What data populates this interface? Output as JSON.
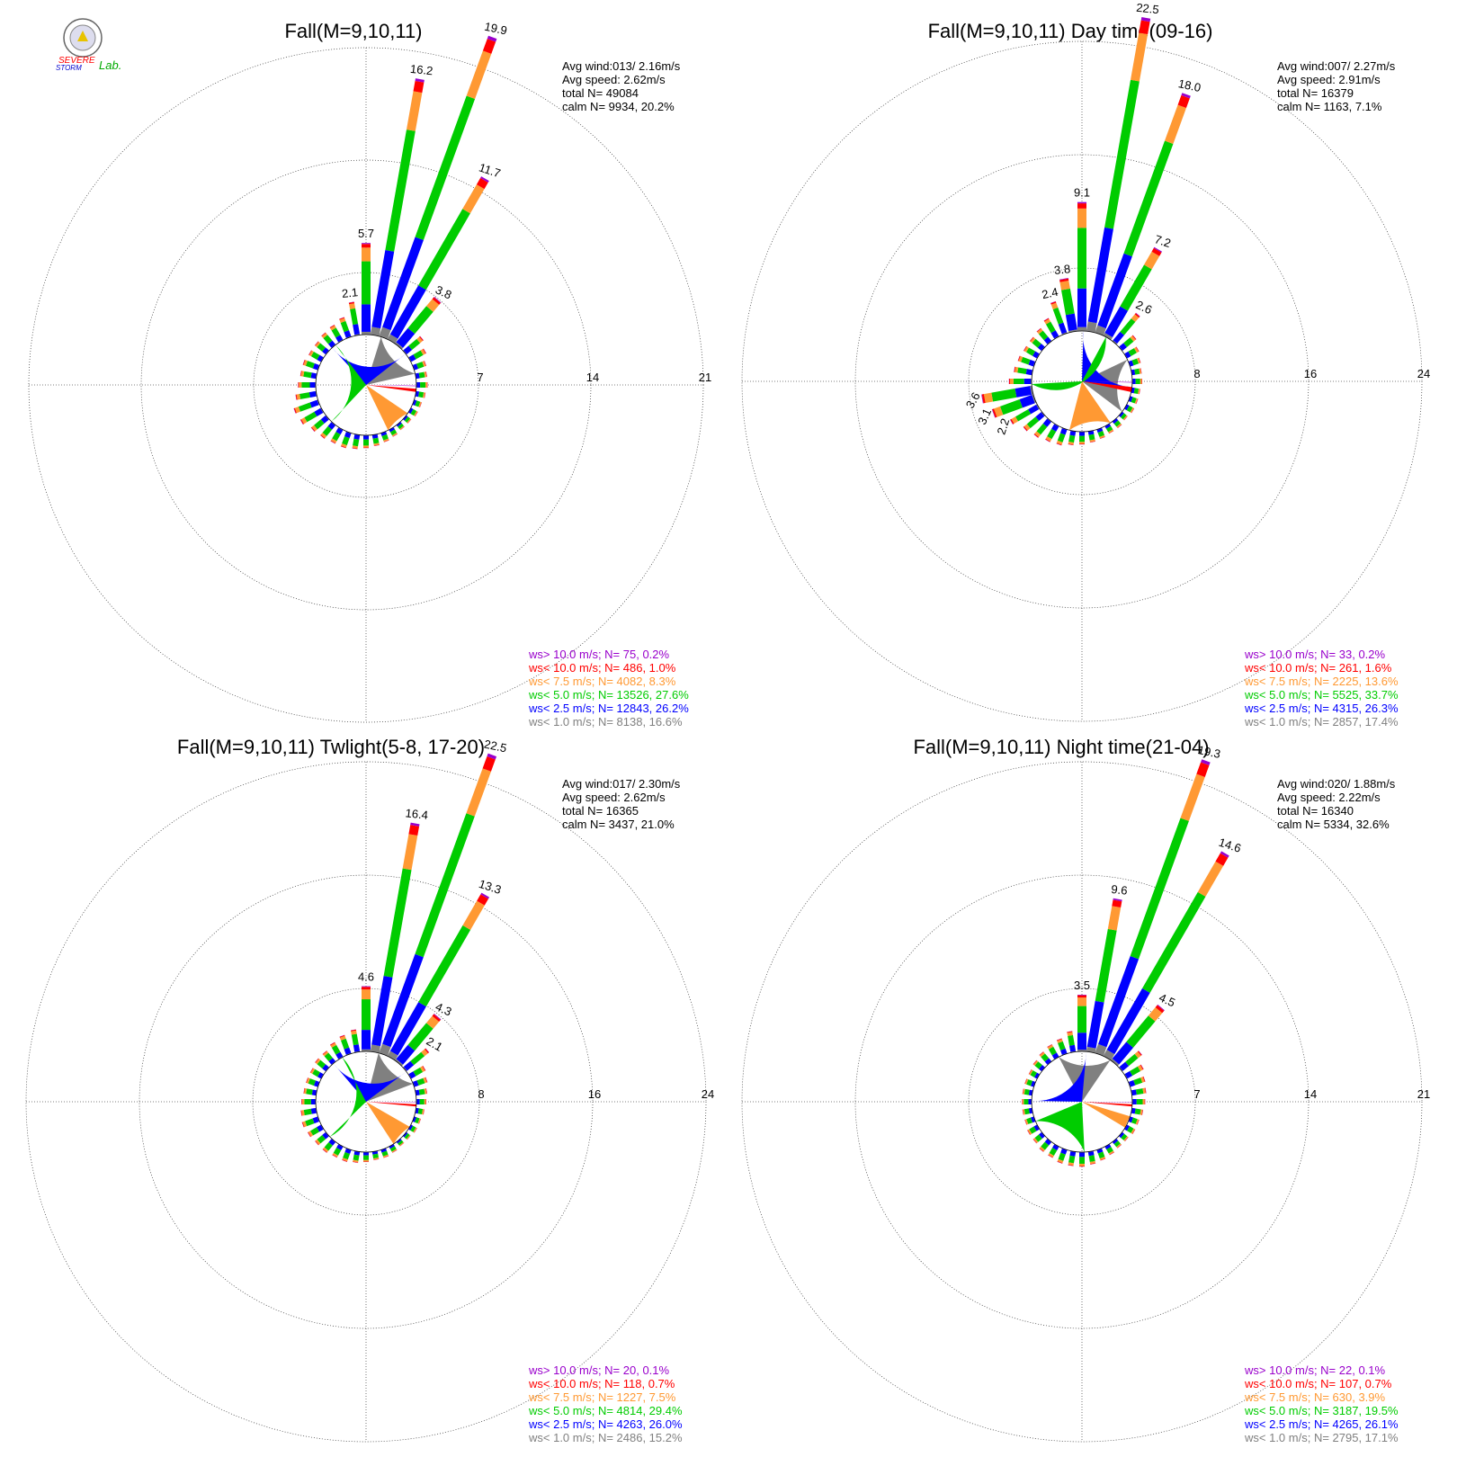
{
  "logo": {
    "text_1": "SEVERE",
    "text_2": "STORM",
    "text_3": "Lab."
  },
  "legend_colors": {
    "gt10": "#9900cc",
    "lt10": "#ff0000",
    "lt7_5": "#ff9933",
    "lt5": "#00cc00",
    "lt2_5": "#0000ff",
    "lt1": "#808080"
  },
  "chart_data": [
    {
      "type": "windrose",
      "title": "Fall(M=9,10,11)",
      "ring_ticks": [
        "7",
        "14",
        "21"
      ],
      "rmax": 21,
      "stats": [
        "Avg wind:013/ 2.16m/s",
        "Avg speed: 2.62m/s",
        "total N=      49084",
        "calm N=   9934,  20.2%"
      ],
      "legend": [
        {
          "label": "ws> 10.0 m/s; N=    75,  0.2%",
          "color": "#9900cc"
        },
        {
          "label": "ws< 10.0 m/s; N=   486,  1.0%",
          "color": "#ff0000"
        },
        {
          "label": "ws<  7.5 m/s; N=  4082,  8.3%",
          "color": "#ff9933"
        },
        {
          "label": "ws<  5.0 m/s; N= 13526, 27.6%",
          "color": "#00cc00"
        },
        {
          "label": "ws<  2.5 m/s; N= 12843, 26.2%",
          "color": "#0000ff"
        },
        {
          "label": "ws<  1.0 m/s; N=  8138, 16.6%",
          "color": "#808080"
        }
      ],
      "calm_pie": [
        20.2,
        16.6,
        26.2,
        27.6,
        8.3,
        1.0,
        0.2
      ],
      "spokes": [
        {
          "dir": 350,
          "total": 2.1,
          "label": "2.1"
        },
        {
          "dir": 0,
          "total": 5.7,
          "label": "5.7"
        },
        {
          "dir": 10,
          "total": 16.2,
          "label": "16.2"
        },
        {
          "dir": 20,
          "total": 19.9,
          "label": "19.9"
        },
        {
          "dir": 30,
          "total": 11.7,
          "label": "11.7"
        },
        {
          "dir": 40,
          "total": 3.8,
          "label": "3.8"
        },
        {
          "dir": 50,
          "total": 1.4
        },
        {
          "dir": 60,
          "total": 1.1
        },
        {
          "dir": 70,
          "total": 0.8
        },
        {
          "dir": 80,
          "total": 0.7
        },
        {
          "dir": 90,
          "total": 0.7
        },
        {
          "dir": 100,
          "total": 0.6
        },
        {
          "dir": 110,
          "total": 0.5
        },
        {
          "dir": 120,
          "total": 0.5
        },
        {
          "dir": 130,
          "total": 0.4
        },
        {
          "dir": 140,
          "total": 0.4
        },
        {
          "dir": 150,
          "total": 0.5
        },
        {
          "dir": 160,
          "total": 0.6
        },
        {
          "dir": 170,
          "total": 0.7
        },
        {
          "dir": 180,
          "total": 0.8
        },
        {
          "dir": 190,
          "total": 0.9
        },
        {
          "dir": 200,
          "total": 1.0
        },
        {
          "dir": 210,
          "total": 1.0
        },
        {
          "dir": 220,
          "total": 1.1
        },
        {
          "dir": 230,
          "total": 1.2
        },
        {
          "dir": 240,
          "total": 1.5
        },
        {
          "dir": 250,
          "total": 1.6
        },
        {
          "dir": 260,
          "total": 1.3
        },
        {
          "dir": 270,
          "total": 1.1
        },
        {
          "dir": 280,
          "total": 1.0
        },
        {
          "dir": 290,
          "total": 1.0
        },
        {
          "dir": 300,
          "total": 0.9
        },
        {
          "dir": 310,
          "total": 0.9
        },
        {
          "dir": 320,
          "total": 1.0
        },
        {
          "dir": 330,
          "total": 1.1
        },
        {
          "dir": 340,
          "total": 1.3
        }
      ]
    },
    {
      "type": "windrose",
      "title": "Fall(M=9,10,11) Day time(09-16)",
      "ring_ticks": [
        "8",
        "16",
        "24"
      ],
      "rmax": 24,
      "stats": [
        "Avg wind:007/ 2.27m/s",
        "Avg speed: 2.91m/s",
        "total N=      16379",
        "calm N=   1163,   7.1%"
      ],
      "legend": [
        {
          "label": "ws> 10.0 m/s; N=    33,  0.2%",
          "color": "#9900cc"
        },
        {
          "label": "ws< 10.0 m/s; N=   261,  1.6%",
          "color": "#ff0000"
        },
        {
          "label": "ws<  7.5 m/s; N=  2225, 13.6%",
          "color": "#ff9933"
        },
        {
          "label": "ws<  5.0 m/s; N=  5525, 33.7%",
          "color": "#00cc00"
        },
        {
          "label": "ws<  2.5 m/s; N=  4315, 26.3%",
          "color": "#0000ff"
        },
        {
          "label": "ws<  1.0 m/s; N=  2857, 17.4%",
          "color": "#808080"
        }
      ],
      "calm_pie": [
        7.1,
        17.4,
        26.3,
        33.7,
        13.6,
        1.6,
        0.2
      ],
      "spokes": [
        {
          "dir": 340,
          "total": 2.4,
          "label": "2.4"
        },
        {
          "dir": 350,
          "total": 3.8,
          "label": "3.8"
        },
        {
          "dir": 0,
          "total": 9.1,
          "label": "9.1"
        },
        {
          "dir": 10,
          "total": 22.5,
          "label": "22.5"
        },
        {
          "dir": 20,
          "total": 18.0,
          "label": "18.0"
        },
        {
          "dir": 30,
          "total": 7.2,
          "label": "7.2"
        },
        {
          "dir": 40,
          "total": 2.6,
          "label": "2.6"
        },
        {
          "dir": 50,
          "total": 1.3
        },
        {
          "dir": 60,
          "total": 1.0
        },
        {
          "dir": 70,
          "total": 0.8
        },
        {
          "dir": 80,
          "total": 0.7
        },
        {
          "dir": 90,
          "total": 0.7
        },
        {
          "dir": 100,
          "total": 0.6
        },
        {
          "dir": 110,
          "total": 0.6
        },
        {
          "dir": 120,
          "total": 0.6
        },
        {
          "dir": 130,
          "total": 0.5
        },
        {
          "dir": 140,
          "total": 0.6
        },
        {
          "dir": 150,
          "total": 0.6
        },
        {
          "dir": 160,
          "total": 0.7
        },
        {
          "dir": 170,
          "total": 0.8
        },
        {
          "dir": 180,
          "total": 0.9
        },
        {
          "dir": 190,
          "total": 1.0
        },
        {
          "dir": 200,
          "total": 1.2
        },
        {
          "dir": 210,
          "total": 1.3
        },
        {
          "dir": 220,
          "total": 1.5
        },
        {
          "dir": 230,
          "total": 1.7
        },
        {
          "dir": 240,
          "total": 2.2,
          "label": "2.2"
        },
        {
          "dir": 250,
          "total": 3.1,
          "label": "3.1"
        },
        {
          "dir": 260,
          "total": 3.6,
          "label": "3.6"
        },
        {
          "dir": 270,
          "total": 1.6
        },
        {
          "dir": 280,
          "total": 1.3
        },
        {
          "dir": 290,
          "total": 1.2
        },
        {
          "dir": 300,
          "total": 1.1
        },
        {
          "dir": 310,
          "total": 1.1
        },
        {
          "dir": 320,
          "total": 1.2
        },
        {
          "dir": 330,
          "total": 1.5
        }
      ]
    },
    {
      "type": "windrose",
      "title": "Fall(M=9,10,11) Twlight(5-8, 17-20)",
      "ring_ticks": [
        "8",
        "16",
        "24"
      ],
      "rmax": 24,
      "stats": [
        "Avg wind:017/ 2.30m/s",
        "Avg speed: 2.62m/s",
        "total N=      16365",
        "calm N=   3437,  21.0%"
      ],
      "legend": [
        {
          "label": "ws> 10.0 m/s; N=    20,  0.1%",
          "color": "#9900cc"
        },
        {
          "label": "ws< 10.0 m/s; N=   118,  0.7%",
          "color": "#ff0000"
        },
        {
          "label": "ws<  7.5 m/s; N=  1227,  7.5%",
          "color": "#ff9933"
        },
        {
          "label": "ws<  5.0 m/s; N=  4814, 29.4%",
          "color": "#00cc00"
        },
        {
          "label": "ws<  2.5 m/s; N=  4263, 26.0%",
          "color": "#0000ff"
        },
        {
          "label": "ws<  1.0 m/s; N=  2486, 15.2%",
          "color": "#808080"
        }
      ],
      "calm_pie": [
        21.0,
        15.2,
        26.0,
        29.4,
        7.5,
        0.7,
        0.1
      ],
      "spokes": [
        {
          "dir": 350,
          "total": 1.6
        },
        {
          "dir": 0,
          "total": 4.6,
          "label": "4.6"
        },
        {
          "dir": 10,
          "total": 16.4,
          "label": "16.4"
        },
        {
          "dir": 20,
          "total": 22.5,
          "label": "22.5"
        },
        {
          "dir": 30,
          "total": 13.3,
          "label": "13.3"
        },
        {
          "dir": 40,
          "total": 4.3,
          "label": "4.3"
        },
        {
          "dir": 50,
          "total": 2.1,
          "label": "2.1"
        },
        {
          "dir": 60,
          "total": 1.2
        },
        {
          "dir": 70,
          "total": 1.0
        },
        {
          "dir": 80,
          "total": 0.8
        },
        {
          "dir": 90,
          "total": 0.7
        },
        {
          "dir": 100,
          "total": 0.6
        },
        {
          "dir": 110,
          "total": 0.5
        },
        {
          "dir": 120,
          "total": 0.5
        },
        {
          "dir": 130,
          "total": 0.4
        },
        {
          "dir": 140,
          "total": 0.4
        },
        {
          "dir": 150,
          "total": 0.5
        },
        {
          "dir": 160,
          "total": 0.6
        },
        {
          "dir": 170,
          "total": 0.6
        },
        {
          "dir": 180,
          "total": 0.7
        },
        {
          "dir": 190,
          "total": 0.8
        },
        {
          "dir": 200,
          "total": 0.9
        },
        {
          "dir": 210,
          "total": 0.9
        },
        {
          "dir": 220,
          "total": 1.0
        },
        {
          "dir": 230,
          "total": 1.0
        },
        {
          "dir": 240,
          "total": 1.1
        },
        {
          "dir": 250,
          "total": 1.2
        },
        {
          "dir": 260,
          "total": 1.1
        },
        {
          "dir": 270,
          "total": 1.0
        },
        {
          "dir": 280,
          "total": 0.9
        },
        {
          "dir": 290,
          "total": 0.9
        },
        {
          "dir": 300,
          "total": 0.9
        },
        {
          "dir": 310,
          "total": 1.0
        },
        {
          "dir": 320,
          "total": 1.0
        },
        {
          "dir": 330,
          "total": 1.2
        },
        {
          "dir": 340,
          "total": 1.4
        }
      ]
    },
    {
      "type": "windrose",
      "title": "Fall(M=9,10,11) Night time(21-04)",
      "ring_ticks": [
        "7",
        "14",
        "21"
      ],
      "rmax": 21,
      "stats": [
        "Avg wind:020/ 1.88m/s",
        "Avg speed: 2.22m/s",
        "total N=      16340",
        "calm N=   5334,  32.6%"
      ],
      "legend": [
        {
          "label": "ws> 10.0 m/s; N=    22,  0.1%",
          "color": "#9900cc"
        },
        {
          "label": "ws< 10.0 m/s; N=   107,  0.7%",
          "color": "#ff0000"
        },
        {
          "label": "ws<  7.5 m/s; N=   630,  3.9%",
          "color": "#ff9933"
        },
        {
          "label": "ws<  5.0 m/s; N=  3187, 19.5%",
          "color": "#00cc00"
        },
        {
          "label": "ws<  2.5 m/s; N=  4265, 26.1%",
          "color": "#0000ff"
        },
        {
          "label": "ws<  1.0 m/s; N=  2795, 17.1%",
          "color": "#808080"
        }
      ],
      "calm_pie": [
        32.6,
        17.1,
        26.1,
        19.5,
        3.9,
        0.7,
        0.1
      ],
      "spokes": [
        {
          "dir": 350,
          "total": 1.3
        },
        {
          "dir": 0,
          "total": 3.5,
          "label": "3.5"
        },
        {
          "dir": 10,
          "total": 9.6,
          "label": "9.6"
        },
        {
          "dir": 20,
          "total": 19.3,
          "label": "19.3"
        },
        {
          "dir": 30,
          "total": 14.6,
          "label": "14.6"
        },
        {
          "dir": 40,
          "total": 4.5,
          "label": "4.5"
        },
        {
          "dir": 50,
          "total": 1.6
        },
        {
          "dir": 60,
          "total": 1.2
        },
        {
          "dir": 70,
          "total": 1.0
        },
        {
          "dir": 80,
          "total": 0.9
        },
        {
          "dir": 90,
          "total": 0.8
        },
        {
          "dir": 100,
          "total": 0.7
        },
        {
          "dir": 110,
          "total": 0.6
        },
        {
          "dir": 120,
          "total": 0.6
        },
        {
          "dir": 130,
          "total": 0.5
        },
        {
          "dir": 140,
          "total": 0.5
        },
        {
          "dir": 150,
          "total": 0.6
        },
        {
          "dir": 160,
          "total": 0.7
        },
        {
          "dir": 170,
          "total": 0.8
        },
        {
          "dir": 180,
          "total": 0.9
        },
        {
          "dir": 190,
          "total": 0.9
        },
        {
          "dir": 200,
          "total": 0.9
        },
        {
          "dir": 210,
          "total": 0.8
        },
        {
          "dir": 220,
          "total": 0.8
        },
        {
          "dir": 230,
          "total": 0.7
        },
        {
          "dir": 240,
          "total": 0.7
        },
        {
          "dir": 250,
          "total": 0.6
        },
        {
          "dir": 260,
          "total": 0.6
        },
        {
          "dir": 270,
          "total": 0.6
        },
        {
          "dir": 280,
          "total": 0.6
        },
        {
          "dir": 290,
          "total": 0.6
        },
        {
          "dir": 300,
          "total": 0.6
        },
        {
          "dir": 310,
          "total": 0.7
        },
        {
          "dir": 320,
          "total": 0.8
        },
        {
          "dir": 330,
          "total": 0.9
        },
        {
          "dir": 340,
          "total": 1.0
        }
      ]
    }
  ]
}
